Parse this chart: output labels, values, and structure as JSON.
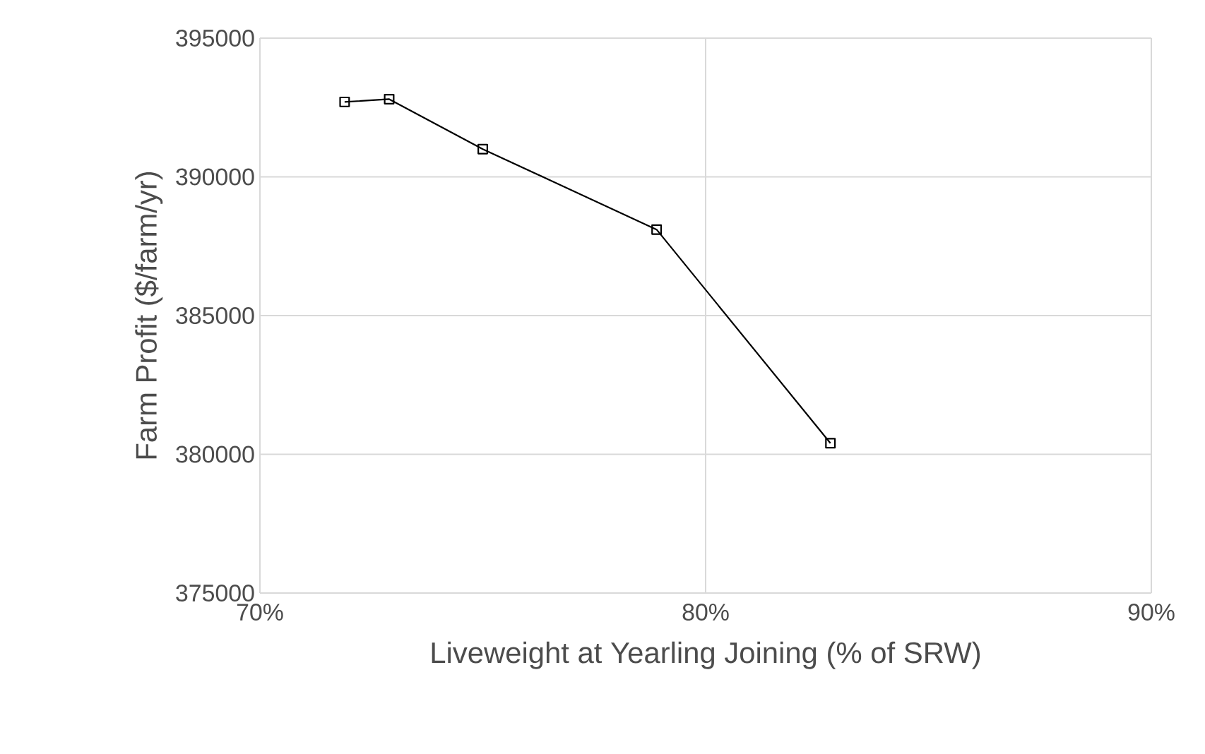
{
  "chart_data": {
    "type": "line",
    "xlabel": "Liveweight at Yearling Joining (% of SRW)",
    "ylabel": "Farm Profit ($/farm/yr)",
    "x": [
      71.9,
      72.9,
      75.0,
      78.9,
      82.8
    ],
    "series": [
      {
        "color": "#000000",
        "values": [
          392700,
          392800,
          391000,
          388100,
          380400
        ]
      }
    ],
    "xlim": [
      70,
      90
    ],
    "xticks": [
      {
        "value": 70,
        "label": "70%"
      },
      {
        "value": 80,
        "label": "80%"
      },
      {
        "value": 90,
        "label": "90%"
      }
    ],
    "ylim": [
      375000,
      395000
    ],
    "yticks": [
      375000,
      380000,
      385000,
      390000,
      395000
    ],
    "grid": true,
    "marker": "square",
    "line_style": "solid"
  }
}
